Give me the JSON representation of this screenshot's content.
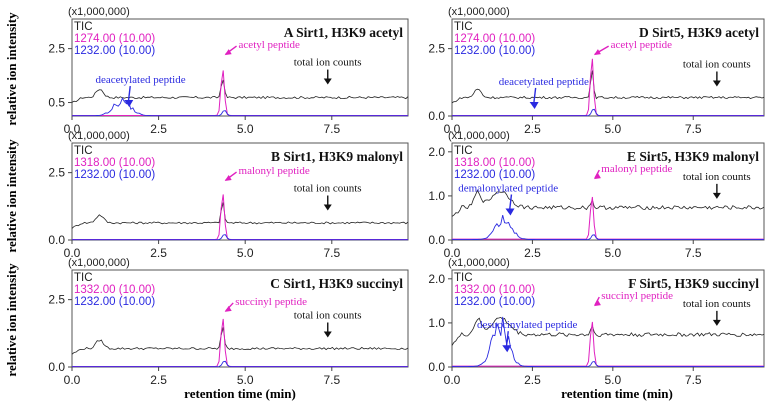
{
  "figure": {
    "ylabel": "relative ion intensity",
    "xlabel": "retention time (min)",
    "scale_label": "(x1,000,000)",
    "legend_tic": "TIC",
    "colors": {
      "tic": "#222222",
      "acyl": "#e020c0",
      "deacyl": "#2a2ae0"
    }
  },
  "chart_data": [
    {
      "type": "line",
      "title": "A  Sirt1, H3K9 acetyl",
      "legend": [
        "TIC",
        "1274.00 (10.00)",
        "1232.00 (10.00)"
      ],
      "xlim": [
        0,
        9.7
      ],
      "ylim": [
        0,
        3.6
      ],
      "xticks": [
        "0.0",
        "2.5",
        "5.0",
        "7.5"
      ],
      "yticks": [
        "0.5",
        "2.5"
      ],
      "annotations": [
        "acetyl peptide",
        "deacetylated peptide",
        "total ion counts"
      ],
      "tic_baseline": 0.7,
      "acyl_peak": {
        "x": 4.35,
        "y": 1.75
      },
      "deacyl_peak": {
        "x": 1.45,
        "y": 0.7
      }
    },
    {
      "type": "line",
      "title": "B  Sirt1, H3K9 malonyl",
      "legend": [
        "TIC",
        "1318.00 (10.00)",
        "1232.00 (10.00)"
      ],
      "xlim": [
        0,
        9.7
      ],
      "ylim": [
        0,
        3.6
      ],
      "xticks": [
        "0.0",
        "2.5",
        "5.0",
        "7.5"
      ],
      "yticks": [
        "0.0",
        "2.5"
      ],
      "annotations": [
        "malonyl peptide",
        "total ion counts"
      ],
      "tic_baseline": 0.65,
      "acyl_peak": {
        "x": 4.35,
        "y": 1.75
      },
      "deacyl_peak": null
    },
    {
      "type": "line",
      "title": "C  Sirt1, H3K9 succinyl",
      "legend": [
        "TIC",
        "1332.00 (10.00)",
        "1232.00 (10.00)"
      ],
      "xlim": [
        0,
        9.7
      ],
      "ylim": [
        0,
        3.6
      ],
      "xticks": [
        "0.0",
        "2.5",
        "5.0",
        "7.5"
      ],
      "yticks": [
        "0.0",
        "2.5"
      ],
      "annotations": [
        "succinyl peptide",
        "total ion counts"
      ],
      "tic_baseline": 0.7,
      "acyl_peak": {
        "x": 4.35,
        "y": 1.85
      },
      "deacyl_peak": null
    },
    {
      "type": "line",
      "title": "D  Sirt5, H3K9 acetyl",
      "legend": [
        "TIC",
        "1274.00 (10.00)",
        "1232.00 (10.00)"
      ],
      "xlim": [
        0,
        9.7
      ],
      "ylim": [
        0,
        3.6
      ],
      "xticks": [
        "0.0",
        "2.5",
        "5.0",
        "7.5"
      ],
      "yticks": [
        "0.0",
        "2.5"
      ],
      "annotations": [
        "acetyl peptide",
        "deacetylated peptide",
        "total ion counts"
      ],
      "tic_baseline": 0.7,
      "acyl_peak": {
        "x": 4.35,
        "y": 2.2
      },
      "deacyl_peak": null
    },
    {
      "type": "line",
      "title": "E  Sirt5, H3K9 malonyl",
      "legend": [
        "TIC",
        "1318.00 (10.00)",
        "1232.00 (10.00)"
      ],
      "xlim": [
        0,
        9.7
      ],
      "ylim": [
        0,
        2.2
      ],
      "xticks": [
        "0.0",
        "2.5",
        "5.0",
        "7.5"
      ],
      "yticks": [
        "0.0",
        "1.0",
        "2.0"
      ],
      "annotations": [
        "malonyl peptide",
        "demalonylated peptide",
        "total ion counts"
      ],
      "tic_baseline": 0.75,
      "acyl_peak": {
        "x": 4.35,
        "y": 1.0
      },
      "deacyl_peak": {
        "x": 1.6,
        "y": 0.6
      }
    },
    {
      "type": "line",
      "title": "F  Sirt5, H3K9 succinyl",
      "legend": [
        "TIC",
        "1332.00 (10.00)",
        "1232.00 (10.00)"
      ],
      "xlim": [
        0,
        9.7
      ],
      "ylim": [
        0,
        2.2
      ],
      "xticks": [
        "0.0",
        "2.5",
        "5.0",
        "7.5"
      ],
      "yticks": [
        "0.0",
        "1.0",
        "2.0"
      ],
      "annotations": [
        "succinyl peptide",
        "desuccinylated peptide",
        "total ion counts"
      ],
      "tic_baseline": 0.75,
      "acyl_peak": {
        "x": 4.35,
        "y": 1.05
      },
      "deacyl_peak": {
        "x": 1.5,
        "y": 1.2
      }
    }
  ]
}
